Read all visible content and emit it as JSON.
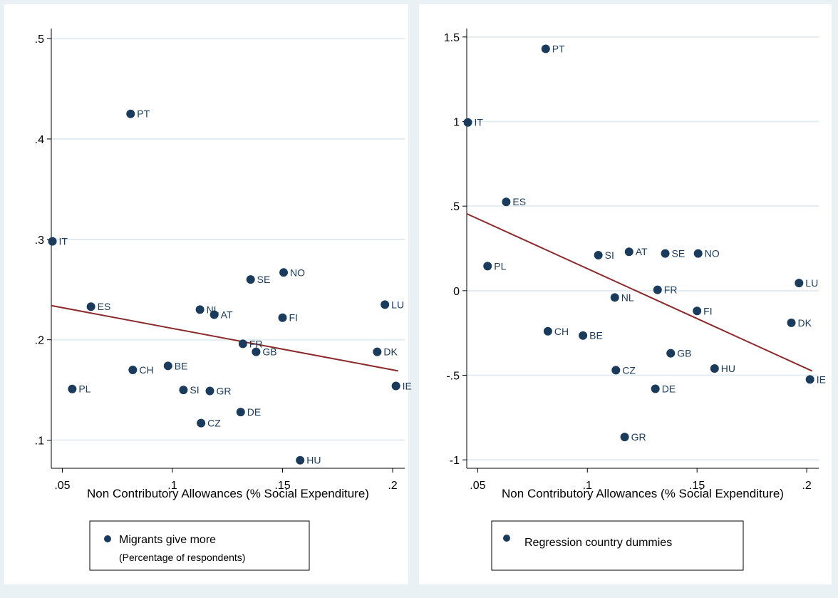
{
  "chart_data": [
    {
      "type": "scatter",
      "title": "",
      "xlabel": "Non Contributory Allowances (% Social Expenditure)",
      "ylabel": "",
      "x_ticks": [
        ".05",
        ".1",
        ".15",
        ".2"
      ],
      "x_tick_values": [
        0.05,
        0.1,
        0.15,
        0.2
      ],
      "y_ticks": [
        ".1",
        ".2",
        ".3",
        ".4",
        ".5"
      ],
      "y_tick_values": [
        0.1,
        0.2,
        0.3,
        0.4,
        0.5
      ],
      "xlim": [
        0.045,
        0.2055
      ],
      "ylim": [
        0.072,
        0.51
      ],
      "grid": true,
      "legend": {
        "placement": "bottom",
        "label": "Migrants give more",
        "sublabel": "(Percentage of respondents)"
      },
      "colors": {
        "points": "#1a3b5c",
        "fit_line": "#8b2a2a",
        "grid": "#e3ecf0"
      },
      "fit_line": {
        "x": [
          0.045,
          0.2025
        ],
        "y": [
          0.234,
          0.169
        ]
      },
      "points": [
        {
          "label": "PT",
          "x": 0.081,
          "y": 0.425
        },
        {
          "label": "IT",
          "x": 0.0455,
          "y": 0.298
        },
        {
          "label": "ES",
          "x": 0.063,
          "y": 0.233
        },
        {
          "label": "PL",
          "x": 0.0545,
          "y": 0.151
        },
        {
          "label": "CH",
          "x": 0.082,
          "y": 0.17
        },
        {
          "label": "BE",
          "x": 0.098,
          "y": 0.174
        },
        {
          "label": "SI",
          "x": 0.105,
          "y": 0.15
        },
        {
          "label": "GR",
          "x": 0.117,
          "y": 0.149
        },
        {
          "label": "CZ",
          "x": 0.113,
          "y": 0.117
        },
        {
          "label": "NL",
          "x": 0.1125,
          "y": 0.23
        },
        {
          "label": "AT",
          "x": 0.119,
          "y": 0.225
        },
        {
          "label": "SE",
          "x": 0.1355,
          "y": 0.26
        },
        {
          "label": "NO",
          "x": 0.1505,
          "y": 0.267
        },
        {
          "label": "FI",
          "x": 0.15,
          "y": 0.222
        },
        {
          "label": "FR",
          "x": 0.132,
          "y": 0.196
        },
        {
          "label": "GB",
          "x": 0.138,
          "y": 0.188
        },
        {
          "label": "DE",
          "x": 0.131,
          "y": 0.128
        },
        {
          "label": "HU",
          "x": 0.158,
          "y": 0.08
        },
        {
          "label": "LU",
          "x": 0.1965,
          "y": 0.235
        },
        {
          "label": "DK",
          "x": 0.193,
          "y": 0.188
        },
        {
          "label": "IE",
          "x": 0.2015,
          "y": 0.154
        }
      ]
    },
    {
      "type": "scatter",
      "title": "",
      "xlabel": "Non Contributory Allowances (% Social Expenditure)",
      "ylabel": "",
      "x_ticks": [
        ".05",
        ".1",
        ".15",
        ".2"
      ],
      "x_tick_values": [
        0.05,
        0.1,
        0.15,
        0.2
      ],
      "y_ticks": [
        "-1",
        "-.5",
        "0",
        ".5",
        "1",
        "1.5"
      ],
      "y_tick_values": [
        -1,
        -0.5,
        0,
        0.5,
        1,
        1.5
      ],
      "xlim": [
        0.045,
        0.2055
      ],
      "ylim": [
        -1.05,
        1.55
      ],
      "grid": true,
      "legend": {
        "placement": "bottom",
        "label": "Regression country dummies"
      },
      "colors": {
        "points": "#1a3b5c",
        "fit_line": "#8b2a2a",
        "grid": "#e3ecf0"
      },
      "fit_line": {
        "x": [
          0.045,
          0.2025
        ],
        "y": [
          0.455,
          -0.475
        ]
      },
      "points": [
        {
          "label": "PT",
          "x": 0.081,
          "y": 1.43
        },
        {
          "label": "IT",
          "x": 0.0455,
          "y": 0.995
        },
        {
          "label": "ES",
          "x": 0.063,
          "y": 0.525
        },
        {
          "label": "PL",
          "x": 0.0545,
          "y": 0.145
        },
        {
          "label": "SI",
          "x": 0.105,
          "y": 0.21
        },
        {
          "label": "AT",
          "x": 0.119,
          "y": 0.23
        },
        {
          "label": "SE",
          "x": 0.1355,
          "y": 0.22
        },
        {
          "label": "NO",
          "x": 0.1505,
          "y": 0.22
        },
        {
          "label": "NL",
          "x": 0.1125,
          "y": -0.04
        },
        {
          "label": "FR",
          "x": 0.132,
          "y": 0.005
        },
        {
          "label": "FI",
          "x": 0.15,
          "y": -0.12
        },
        {
          "label": "LU",
          "x": 0.1965,
          "y": 0.045
        },
        {
          "label": "DK",
          "x": 0.193,
          "y": -0.19
        },
        {
          "label": "CH",
          "x": 0.082,
          "y": -0.24
        },
        {
          "label": "BE",
          "x": 0.098,
          "y": -0.265
        },
        {
          "label": "GB",
          "x": 0.138,
          "y": -0.37
        },
        {
          "label": "CZ",
          "x": 0.113,
          "y": -0.47
        },
        {
          "label": "HU",
          "x": 0.158,
          "y": -0.46
        },
        {
          "label": "DE",
          "x": 0.131,
          "y": -0.58
        },
        {
          "label": "IE",
          "x": 0.2015,
          "y": -0.525
        },
        {
          "label": "GR",
          "x": 0.117,
          "y": -0.865
        }
      ]
    }
  ]
}
